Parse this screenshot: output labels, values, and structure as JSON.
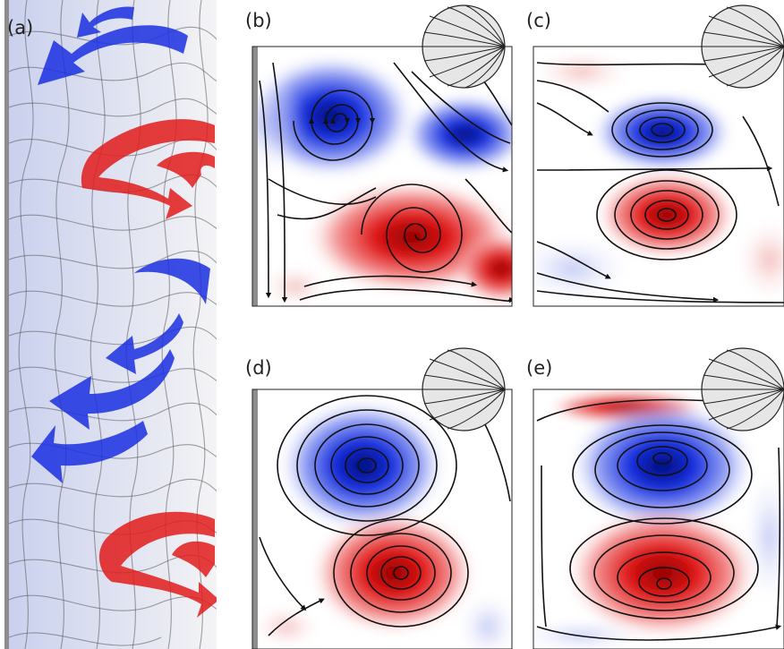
{
  "panels": [
    {
      "id": "a",
      "label": "(a)"
    },
    {
      "id": "b",
      "label": "(b)"
    },
    {
      "id": "c",
      "label": "(c)"
    },
    {
      "id": "d",
      "label": "(d)"
    },
    {
      "id": "e",
      "label": "(e)"
    }
  ],
  "colors": {
    "positive_vorticity": "#e21b1b",
    "negative_vorticity": "#1a2fe0",
    "streamline": "#111111",
    "wall": "#9a9a9a",
    "inset_disk": "#e6e6e6"
  }
}
